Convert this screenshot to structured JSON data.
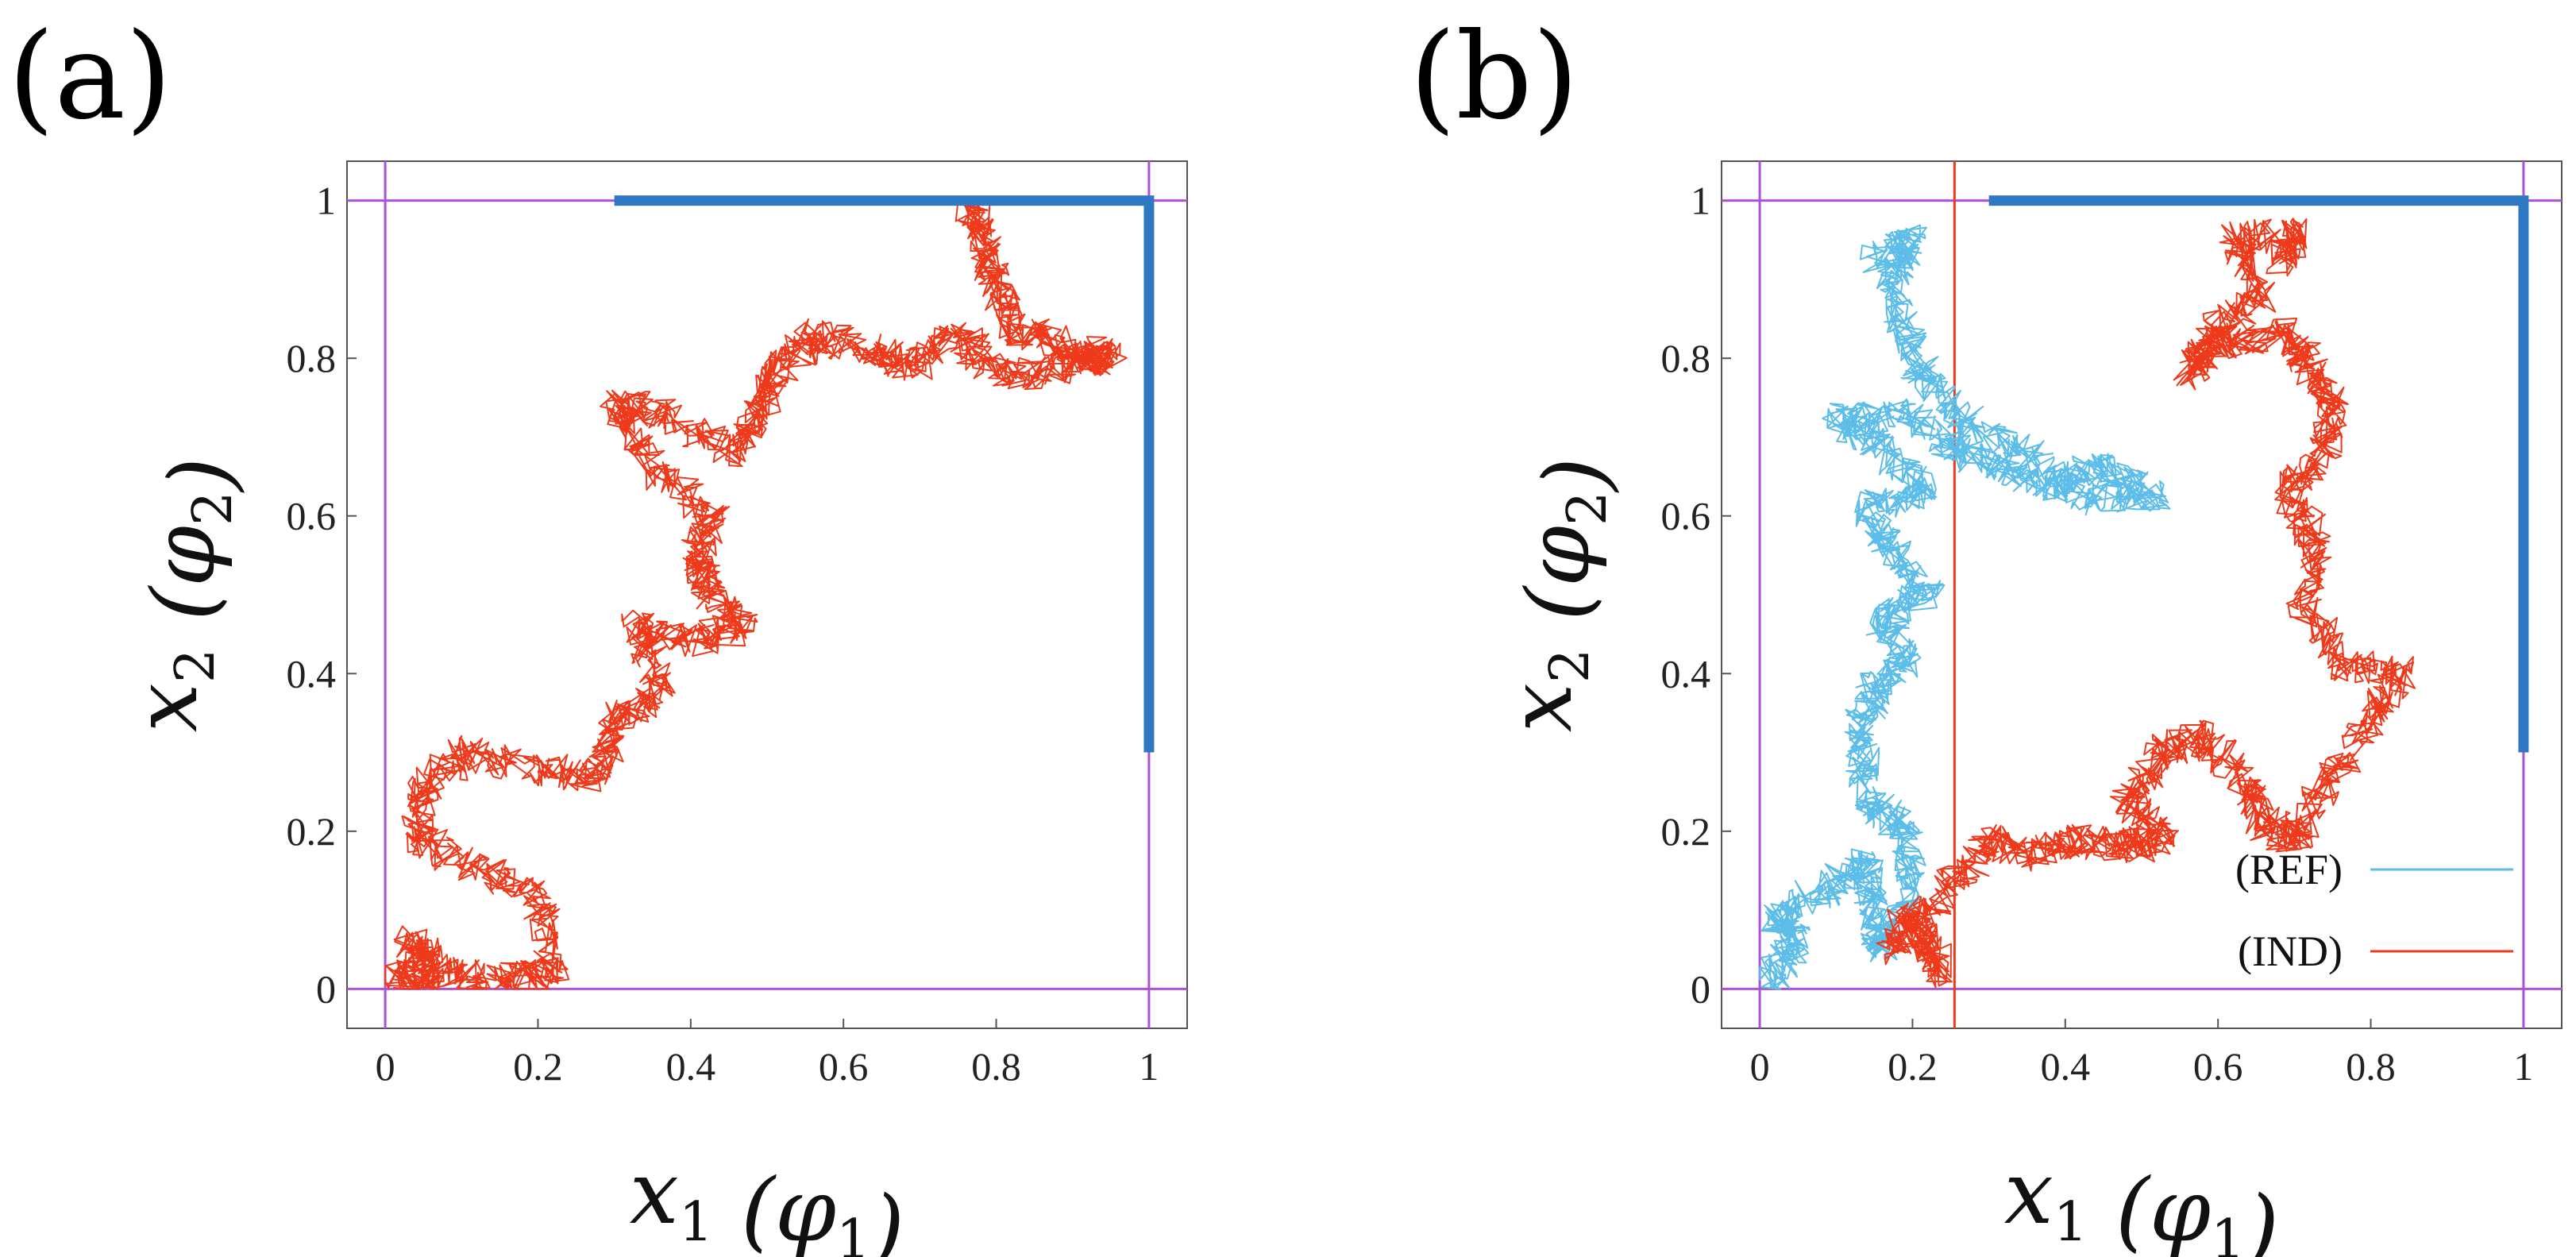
{
  "chart_data": [
    {
      "panel": "(a)",
      "type": "line",
      "xlabel": "x_1 (φ_1)",
      "ylabel": "x_2 (φ_2)",
      "xlim": [
        -0.05,
        1.05
      ],
      "ylim": [
        -0.05,
        1.05
      ],
      "x_ticks": [
        "0",
        "0.2",
        "0.4",
        "0.6",
        "0.8",
        "1"
      ],
      "y_ticks": [
        "0",
        "0.2",
        "0.4",
        "0.6",
        "0.8",
        "1"
      ],
      "boundary_lines": [
        {
          "orientation": "vertical",
          "value": 0,
          "color": "#b04fd8"
        },
        {
          "orientation": "vertical",
          "value": 1,
          "color": "#b04fd8"
        },
        {
          "orientation": "horizontal",
          "value": 0,
          "color": "#b04fd8"
        },
        {
          "orientation": "horizontal",
          "value": 1,
          "color": "#b04fd8"
        }
      ],
      "target_region": {
        "color": "#2f78c4",
        "points": [
          [
            0.3,
            1.0
          ],
          [
            1.0,
            1.0
          ],
          [
            1.0,
            0.3
          ]
        ]
      },
      "series": [
        {
          "name": "trajectory",
          "color": "#ee3a1a",
          "anchors": [
            [
              0.01,
              0.02
            ],
            [
              0.06,
              0.01
            ],
            [
              0.03,
              0.06
            ],
            [
              0.08,
              0.02
            ],
            [
              0.16,
              0.01
            ],
            [
              0.22,
              0.02
            ],
            [
              0.2,
              0.12
            ],
            [
              0.13,
              0.15
            ],
            [
              0.04,
              0.19
            ],
            [
              0.05,
              0.25
            ],
            [
              0.1,
              0.3
            ],
            [
              0.19,
              0.28
            ],
            [
              0.28,
              0.27
            ],
            [
              0.3,
              0.34
            ],
            [
              0.36,
              0.38
            ],
            [
              0.33,
              0.46
            ],
            [
              0.4,
              0.44
            ],
            [
              0.47,
              0.46
            ],
            [
              0.42,
              0.51
            ],
            [
              0.41,
              0.55
            ],
            [
              0.43,
              0.6
            ],
            [
              0.35,
              0.66
            ],
            [
              0.3,
              0.74
            ],
            [
              0.36,
              0.73
            ],
            [
              0.46,
              0.68
            ],
            [
              0.49,
              0.74
            ],
            [
              0.52,
              0.79
            ],
            [
              0.56,
              0.83
            ],
            [
              0.63,
              0.81
            ],
            [
              0.69,
              0.79
            ],
            [
              0.75,
              0.83
            ],
            [
              0.79,
              0.79
            ],
            [
              0.86,
              0.78
            ],
            [
              0.92,
              0.8
            ],
            [
              0.95,
              0.8
            ],
            [
              0.88,
              0.82
            ],
            [
              0.82,
              0.84
            ],
            [
              0.8,
              0.9
            ],
            [
              0.78,
              0.96
            ],
            [
              0.76,
              1.0
            ]
          ],
          "noise_amp": 0.022,
          "seed": 11
        }
      ]
    },
    {
      "panel": "(b)",
      "type": "line",
      "xlabel": "x_1 (φ_1)",
      "ylabel": "x_2 (φ_2)",
      "xlim": [
        -0.05,
        1.05
      ],
      "ylim": [
        -0.05,
        1.05
      ],
      "x_ticks": [
        "0",
        "0.2",
        "0.4",
        "0.6",
        "0.8",
        "1"
      ],
      "y_ticks": [
        "0",
        "0.2",
        "0.4",
        "0.6",
        "0.8",
        "1"
      ],
      "boundary_lines": [
        {
          "orientation": "vertical",
          "value": 0,
          "color": "#b04fd8"
        },
        {
          "orientation": "vertical",
          "value": 1,
          "color": "#b04fd8"
        },
        {
          "orientation": "horizontal",
          "value": 0,
          "color": "#b04fd8"
        },
        {
          "orientation": "horizontal",
          "value": 1,
          "color": "#b04fd8"
        },
        {
          "orientation": "vertical",
          "value": 0.255,
          "color": "#ee3a1a"
        }
      ],
      "target_region": {
        "color": "#2f78c4",
        "points": [
          [
            0.3,
            1.0
          ],
          [
            1.0,
            1.0
          ],
          [
            1.0,
            0.3
          ]
        ]
      },
      "legend": [
        {
          "label": "(REF)",
          "color": "#5bbde8"
        },
        {
          "label": "(IND)",
          "color": "#ee3a1a"
        }
      ],
      "series": [
        {
          "name": "(REF)",
          "color": "#5bbde8",
          "anchors": [
            [
              0.01,
              0.01
            ],
            [
              0.05,
              0.06
            ],
            [
              0.02,
              0.09
            ],
            [
              0.09,
              0.13
            ],
            [
              0.14,
              0.16
            ],
            [
              0.15,
              0.1
            ],
            [
              0.16,
              0.05
            ],
            [
              0.2,
              0.14
            ],
            [
              0.19,
              0.21
            ],
            [
              0.14,
              0.24
            ],
            [
              0.13,
              0.32
            ],
            [
              0.15,
              0.38
            ],
            [
              0.19,
              0.42
            ],
            [
              0.16,
              0.47
            ],
            [
              0.22,
              0.5
            ],
            [
              0.17,
              0.56
            ],
            [
              0.14,
              0.61
            ],
            [
              0.22,
              0.63
            ],
            [
              0.16,
              0.69
            ],
            [
              0.1,
              0.72
            ],
            [
              0.19,
              0.73
            ],
            [
              0.25,
              0.69
            ],
            [
              0.31,
              0.66
            ],
            [
              0.38,
              0.64
            ],
            [
              0.45,
              0.66
            ],
            [
              0.52,
              0.63
            ],
            [
              0.44,
              0.62
            ],
            [
              0.36,
              0.67
            ],
            [
              0.27,
              0.72
            ],
            [
              0.22,
              0.77
            ],
            [
              0.19,
              0.83
            ],
            [
              0.17,
              0.9
            ],
            [
              0.2,
              0.95
            ],
            [
              0.15,
              0.92
            ]
          ],
          "noise_amp": 0.022,
          "seed": 29
        },
        {
          "name": "(IND)",
          "color": "#ee3a1a",
          "anchors": [
            [
              0.2,
              0.07
            ],
            [
              0.24,
              0.02
            ],
            [
              0.2,
              0.1
            ],
            [
              0.17,
              0.05
            ],
            [
              0.25,
              0.13
            ],
            [
              0.3,
              0.19
            ],
            [
              0.36,
              0.17
            ],
            [
              0.42,
              0.19
            ],
            [
              0.48,
              0.18
            ],
            [
              0.53,
              0.19
            ],
            [
              0.48,
              0.24
            ],
            [
              0.53,
              0.3
            ],
            [
              0.58,
              0.32
            ],
            [
              0.64,
              0.26
            ],
            [
              0.66,
              0.21
            ],
            [
              0.7,
              0.19
            ],
            [
              0.74,
              0.26
            ],
            [
              0.8,
              0.34
            ],
            [
              0.84,
              0.4
            ],
            [
              0.76,
              0.41
            ],
            [
              0.71,
              0.49
            ],
            [
              0.73,
              0.57
            ],
            [
              0.69,
              0.63
            ],
            [
              0.74,
              0.68
            ],
            [
              0.75,
              0.74
            ],
            [
              0.72,
              0.79
            ],
            [
              0.69,
              0.83
            ],
            [
              0.6,
              0.82
            ],
            [
              0.56,
              0.78
            ],
            [
              0.6,
              0.84
            ],
            [
              0.66,
              0.88
            ],
            [
              0.62,
              0.95
            ],
            [
              0.7,
              0.96
            ],
            [
              0.68,
              0.92
            ]
          ],
          "noise_amp": 0.022,
          "seed": 47
        }
      ]
    }
  ]
}
